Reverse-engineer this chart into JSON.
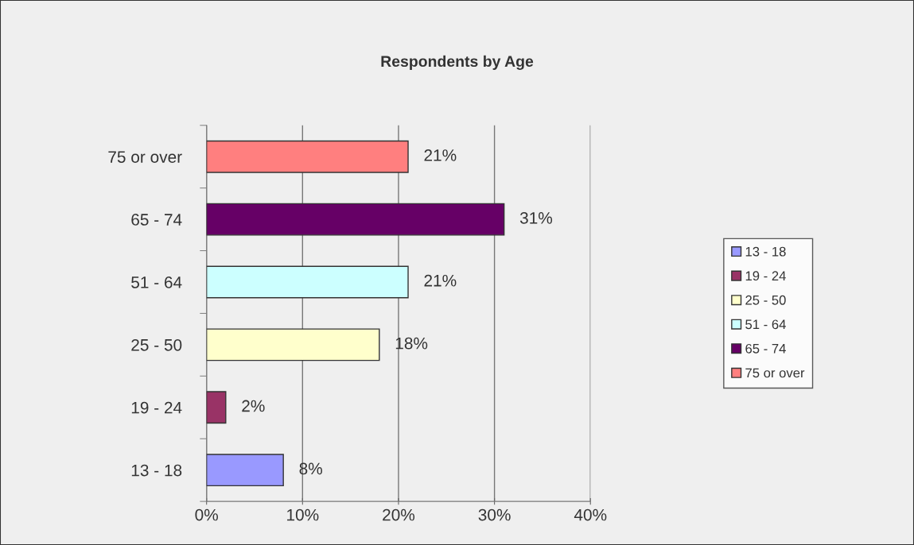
{
  "chart_data": {
    "type": "bar",
    "orientation": "horizontal",
    "stacked": true,
    "title": "Respondents by Age",
    "categories": [
      "75 or over",
      "65 - 74",
      "51 - 64",
      "25 - 50",
      "19 - 24",
      "13 - 18"
    ],
    "series": [
      {
        "name": "13 - 18",
        "color": "#9999ff",
        "values": [
          null,
          null,
          null,
          null,
          null,
          8
        ],
        "value_labels": [
          null,
          null,
          null,
          null,
          null,
          "8%"
        ]
      },
      {
        "name": "19 - 24",
        "color": "#993366",
        "values": [
          null,
          null,
          null,
          null,
          2,
          null
        ],
        "value_labels": [
          null,
          null,
          null,
          null,
          "2%",
          null
        ]
      },
      {
        "name": "25 - 50",
        "color": "#ffffcc",
        "values": [
          null,
          null,
          null,
          18,
          null,
          null
        ],
        "value_labels": [
          null,
          null,
          null,
          "18%",
          null,
          null
        ]
      },
      {
        "name": "51 - 64",
        "color": "#ccffff",
        "values": [
          null,
          null,
          21,
          null,
          null,
          null
        ],
        "value_labels": [
          null,
          null,
          "21%",
          null,
          null,
          null
        ]
      },
      {
        "name": "65 - 74",
        "color": "#660066",
        "values": [
          null,
          31,
          null,
          null,
          null,
          null
        ],
        "value_labels": [
          null,
          "31%",
          null,
          null,
          null,
          null
        ]
      },
      {
        "name": "75 or over",
        "color": "#ff7f7f",
        "values": [
          21,
          null,
          null,
          null,
          null,
          null
        ],
        "value_labels": [
          "21%",
          null,
          null,
          null,
          null,
          null
        ]
      }
    ],
    "xlim": [
      0,
      40
    ],
    "xticks": [
      {
        "value": 0,
        "label": "0%"
      },
      {
        "value": 10,
        "label": "10%"
      },
      {
        "value": 20,
        "label": "20%"
      },
      {
        "value": 30,
        "label": "30%"
      },
      {
        "value": 40,
        "label": "40%"
      }
    ],
    "grid": "x",
    "legend": "right"
  }
}
